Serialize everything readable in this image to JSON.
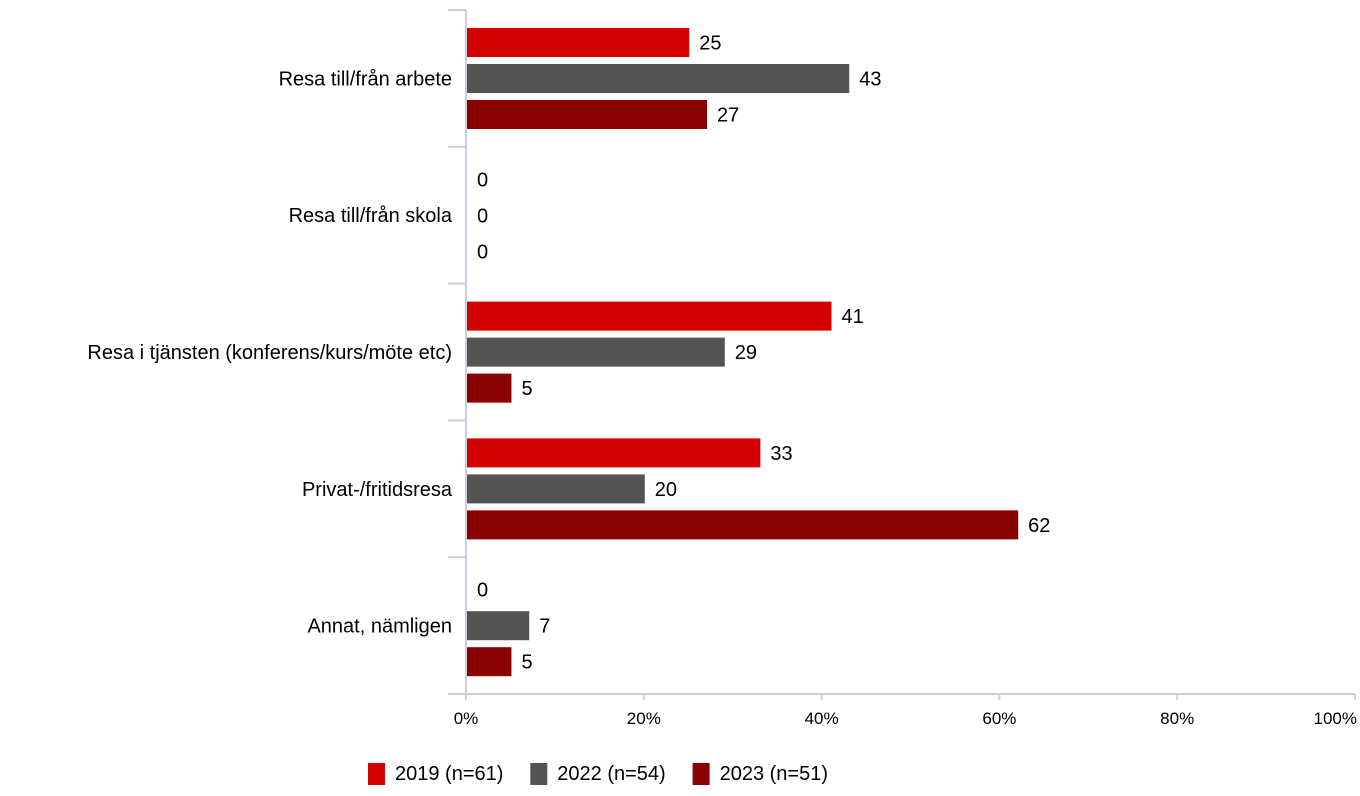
{
  "chart_data": {
    "type": "bar",
    "orientation": "horizontal",
    "categories": [
      "Resa till/från arbete",
      "Resa till/från skola",
      "Resa i tjänsten (konferens/kurs/möte etc)",
      "Privat-/fritidsresa",
      "Annat, nämligen"
    ],
    "series": [
      {
        "name": "2019 (n=61)",
        "color": "#d40000",
        "values": [
          25,
          0,
          41,
          33,
          0
        ]
      },
      {
        "name": "2022 (n=54)",
        "color": "#545454",
        "values": [
          43,
          0,
          29,
          20,
          7
        ]
      },
      {
        "name": "2023 (n=51)",
        "color": "#8b0000",
        "values": [
          27,
          0,
          5,
          62,
          5
        ]
      }
    ],
    "xlim": [
      0,
      100
    ],
    "xticks": [
      "0%",
      "20%",
      "40%",
      "60%",
      "80%",
      "100%"
    ],
    "grid": false,
    "legend_position": "bottom-center",
    "title": "",
    "xlabel": "",
    "ylabel": ""
  }
}
